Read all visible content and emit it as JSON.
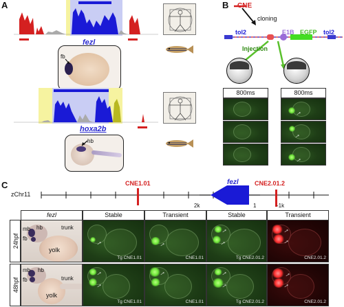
{
  "panels": {
    "a": "A",
    "b": "B",
    "c": "C"
  },
  "panel_a": {
    "gene_top": "fezl",
    "gene_bottom": "hoxa2b",
    "label_fb": "fb",
    "label_hb": "hb"
  },
  "panel_b": {
    "cne": "CNE",
    "cloning": "cloning",
    "tol2_left": "tol2",
    "e1b": "E1B",
    "egfp": "EGFP",
    "tol2_right": "tol2",
    "injection": "Injection",
    "exposure_left": "800ms",
    "exposure_right": "800ms"
  },
  "panel_c": {
    "chromosome": "zChr11",
    "cne1": "CNE1.01",
    "cne2": "CNE2.01.2",
    "gene": "fezl",
    "scale_2k": "2k",
    "scale_1": "1",
    "scale_m1k": "-1k",
    "col_headers": [
      "fezl",
      "Stable",
      "Transient",
      "Stable",
      "Transient"
    ],
    "rows": [
      {
        "stage": "24hpf",
        "captions": [
          "Tg CNE1.01",
          "CNE1.01",
          "Tg CNE2.01.2",
          "CNE2.01.2"
        ]
      },
      {
        "stage": "48hpf",
        "captions": [
          "Tg CNE1.01",
          "CNE1.01",
          "Tg CNE2.01.2",
          "CNE2.01.2"
        ]
      }
    ],
    "bf_labels": {
      "mb": "mb",
      "hb": "hb",
      "fb": "fb",
      "trunk": "trunk",
      "yolk": "yolk"
    }
  },
  "colors": {
    "track_red": "#d42020",
    "track_blue": "#1a1ad6",
    "highlight_yellow": "#f6f3a0",
    "highlight_blue": "#c9cdf4",
    "gene_blue": "#2a2ad0",
    "cne_red": "#d42020",
    "arrow_green": "#59c02c",
    "egfp_green": "#44dd22",
    "e1b_purple": "#9a6ad8"
  }
}
